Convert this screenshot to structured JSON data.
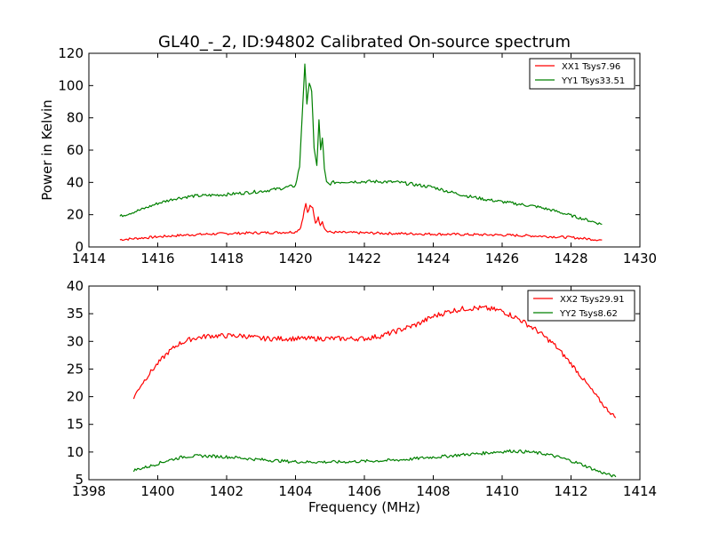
{
  "chart_data": {
    "title": "GL40_-_2, ID:94802 Calibrated On-source spectrum",
    "xlabel": "Frequency (MHz)",
    "charts": [
      {
        "type": "line",
        "ylabel": "Power in Kelvin",
        "xlim": [
          1414,
          1430
        ],
        "ylim": [
          0,
          120
        ],
        "xticks": [
          1414,
          1416,
          1418,
          1420,
          1422,
          1424,
          1426,
          1428,
          1430
        ],
        "yticks": [
          0,
          20,
          40,
          60,
          80,
          100,
          120
        ],
        "legend_position": "top-right",
        "series": [
          {
            "name": "XX1 Tsys7.96",
            "color": "#ff0000",
            "x": [
              1414.9,
              1415.5,
              1416.0,
              1416.5,
              1417.0,
              1417.5,
              1418.0,
              1418.5,
              1419.0,
              1419.5,
              1420.0,
              1420.15,
              1420.25,
              1420.3,
              1420.35,
              1420.42,
              1420.5,
              1420.58,
              1420.66,
              1420.72,
              1420.78,
              1420.85,
              1420.93,
              1421.0,
              1421.2,
              1421.5,
              1422.0,
              1422.5,
              1423.0,
              1424.0,
              1425.0,
              1426.0,
              1427.0,
              1428.0,
              1428.5,
              1428.9
            ],
            "y": [
              4.5,
              5.5,
              6.3,
              7.0,
              7.6,
              8.0,
              8.3,
              8.6,
              8.8,
              9.0,
              9.3,
              12,
              22,
              27,
              21,
              25,
              24,
              15,
              18,
              14,
              16,
              11,
              9.5,
              9.2,
              9.0,
              8.9,
              8.7,
              8.5,
              8.3,
              8.0,
              7.7,
              7.4,
              6.8,
              5.9,
              5.0,
              4.3
            ]
          },
          {
            "name": "YY1 Tsys33.51",
            "color": "#008000",
            "x": [
              1414.9,
              1415.5,
              1416.0,
              1416.5,
              1417.0,
              1417.5,
              1418.0,
              1418.5,
              1419.0,
              1419.5,
              1420.0,
              1420.12,
              1420.2,
              1420.27,
              1420.33,
              1420.4,
              1420.47,
              1420.54,
              1420.62,
              1420.68,
              1420.73,
              1420.78,
              1420.84,
              1420.9,
              1420.97,
              1421.1,
              1421.5,
              1422.0,
              1422.5,
              1423.0,
              1423.5,
              1424.0,
              1424.5,
              1425.0,
              1425.5,
              1426.0,
              1426.5,
              1427.0,
              1427.5,
              1428.0,
              1428.5,
              1428.9
            ],
            "y": [
              19,
              23,
              27,
              30,
              31.5,
              32,
              32.5,
              33.5,
              34.5,
              36,
              38,
              50,
              85,
              112,
              90,
              102,
              95,
              62,
              50,
              78,
              60,
              68,
              48,
              40,
              39,
              40,
              40.5,
              40.5,
              40.5,
              40,
              38.5,
              37,
              34,
              31.5,
              29.5,
              28,
              26.5,
              25,
              22.5,
              19.5,
              16.5,
              14
            ]
          }
        ]
      },
      {
        "type": "line",
        "ylabel": "",
        "xlim": [
          1398,
          1414
        ],
        "ylim": [
          5,
          40
        ],
        "xticks": [
          1398,
          1400,
          1402,
          1404,
          1406,
          1408,
          1410,
          1412,
          1414
        ],
        "yticks": [
          5,
          10,
          15,
          20,
          25,
          30,
          35,
          40
        ],
        "legend_position": "top-right",
        "series": [
          {
            "name": "XX2 Tsys29.91",
            "color": "#ff0000",
            "x": [
              1399.3,
              1399.5,
              1399.8,
              1400.0,
              1400.3,
              1400.6,
              1401.0,
              1401.5,
              1402.0,
              1402.5,
              1403.0,
              1403.5,
              1404.0,
              1404.5,
              1405.0,
              1405.5,
              1406.0,
              1406.5,
              1407.0,
              1407.5,
              1408.0,
              1408.5,
              1409.0,
              1409.5,
              1410.0,
              1410.5,
              1411.0,
              1411.5,
              1412.0,
              1412.5,
              1413.0,
              1413.3
            ],
            "y": [
              19.8,
              22,
              24.5,
              26,
              28,
              29.5,
              30.5,
              31,
              31,
              31,
              30.5,
              30.5,
              30.5,
              30.5,
              30.5,
              30.5,
              30.5,
              31,
              32,
              33,
              34.5,
              35.5,
              36,
              36,
              35.5,
              34,
              32,
              29.5,
              26,
              22,
              18,
              16.2
            ]
          },
          {
            "name": "YY2 Tsys8.62",
            "color": "#008000",
            "x": [
              1399.3,
              1399.8,
              1400.3,
              1400.8,
              1401.3,
              1401.8,
              1402.3,
              1402.8,
              1403.3,
              1403.8,
              1404.3,
              1404.8,
              1405.3,
              1405.8,
              1406.3,
              1406.8,
              1407.3,
              1407.8,
              1408.3,
              1408.8,
              1409.3,
              1409.8,
              1410.3,
              1410.8,
              1411.3,
              1411.8,
              1412.3,
              1412.8,
              1413.3
            ],
            "y": [
              6.7,
              7.5,
              8.5,
              9.2,
              9.3,
              9.2,
              9.0,
              8.7,
              8.5,
              8.3,
              8.2,
              8.2,
              8.2,
              8.3,
              8.4,
              8.5,
              8.7,
              9.0,
              9.2,
              9.5,
              9.7,
              10.0,
              10.2,
              10.0,
              9.6,
              8.8,
              7.8,
              6.5,
              5.5
            ]
          }
        ]
      }
    ]
  }
}
